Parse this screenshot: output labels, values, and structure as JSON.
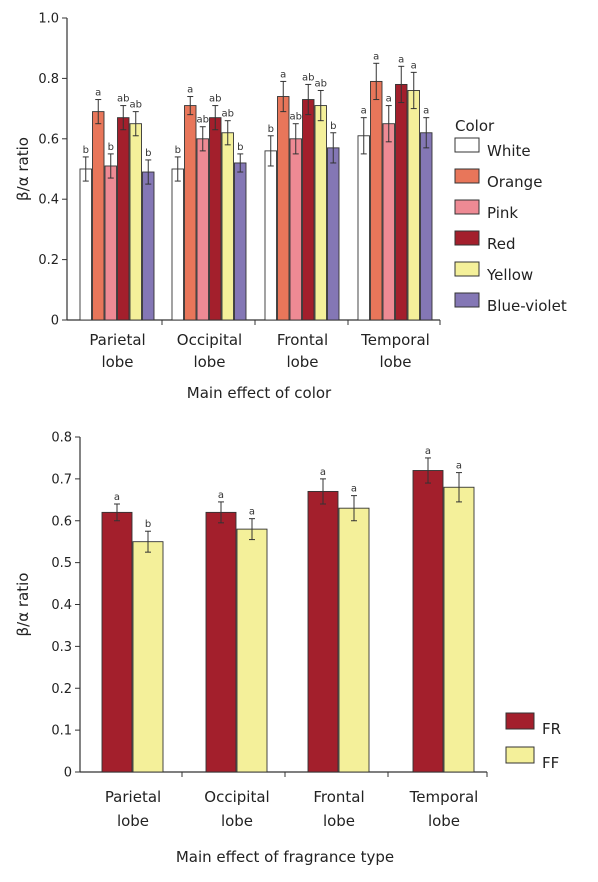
{
  "chart_data": [
    {
      "type": "bar",
      "title": "",
      "xlabel": "Main effect of color",
      "ylabel": "β/α ratio",
      "ylim": [
        0,
        1.0
      ],
      "yticks": [
        "0",
        "0.2",
        "0.4",
        "0.6",
        "0.8",
        "1.0"
      ],
      "categories": [
        [
          "Parietal",
          "lobe"
        ],
        [
          "Occipital",
          "lobe"
        ],
        [
          "Frontal",
          "lobe"
        ],
        [
          "Temporal",
          "lobe"
        ]
      ],
      "legend_title": "Color",
      "legend_position": "right",
      "series": [
        {
          "name": "White",
          "color": "#ffffff",
          "values": [
            0.5,
            0.5,
            0.56,
            0.61
          ],
          "errors": [
            0.04,
            0.04,
            0.05,
            0.06
          ],
          "letters": [
            "b",
            "b",
            "b",
            "a"
          ]
        },
        {
          "name": "Orange",
          "color": "#e8765a",
          "values": [
            0.69,
            0.71,
            0.74,
            0.79
          ],
          "errors": [
            0.04,
            0.03,
            0.05,
            0.06
          ],
          "letters": [
            "a",
            "a",
            "a",
            "a"
          ]
        },
        {
          "name": "Pink",
          "color": "#ee8a94",
          "values": [
            0.51,
            0.6,
            0.6,
            0.65
          ],
          "errors": [
            0.04,
            0.04,
            0.05,
            0.06
          ],
          "letters": [
            "b",
            "ab",
            "ab",
            "a"
          ]
        },
        {
          "name": "Red",
          "color": "#a31f2c",
          "values": [
            0.67,
            0.67,
            0.73,
            0.78
          ],
          "errors": [
            0.04,
            0.04,
            0.05,
            0.06
          ],
          "letters": [
            "ab",
            "ab",
            "ab",
            "a"
          ]
        },
        {
          "name": "Yellow",
          "color": "#f4f09a",
          "values": [
            0.65,
            0.62,
            0.71,
            0.76
          ],
          "errors": [
            0.04,
            0.04,
            0.05,
            0.06
          ],
          "letters": [
            "ab",
            "ab",
            "ab",
            "a"
          ]
        },
        {
          "name": "Blue-violet",
          "color": "#8477b5",
          "values": [
            0.49,
            0.52,
            0.57,
            0.62
          ],
          "errors": [
            0.04,
            0.03,
            0.05,
            0.05
          ],
          "letters": [
            "b",
            "b",
            "b",
            "a"
          ]
        }
      ]
    },
    {
      "type": "bar",
      "title": "",
      "xlabel": "Main effect of fragrance type",
      "ylabel": "β/α ratio",
      "ylim": [
        0,
        0.8
      ],
      "yticks": [
        "0",
        "0.1",
        "0.2",
        "0.3",
        "0.4",
        "0.5",
        "0.6",
        "0.7",
        "0.8"
      ],
      "categories": [
        [
          "Parietal",
          "lobe"
        ],
        [
          "Occipital",
          "lobe"
        ],
        [
          "Frontal",
          "lobe"
        ],
        [
          "Temporal",
          "lobe"
        ]
      ],
      "legend_position": "bottom-right",
      "series": [
        {
          "name": "FR",
          "color": "#a31f2c",
          "values": [
            0.62,
            0.62,
            0.67,
            0.72
          ],
          "errors": [
            0.02,
            0.025,
            0.03,
            0.03
          ],
          "letters": [
            "a",
            "a",
            "a",
            "a"
          ]
        },
        {
          "name": "FF",
          "color": "#f4f09a",
          "values": [
            0.55,
            0.58,
            0.63,
            0.68
          ],
          "errors": [
            0.025,
            0.025,
            0.03,
            0.035
          ],
          "letters": [
            "b",
            "a",
            "a",
            "a"
          ]
        }
      ]
    }
  ]
}
